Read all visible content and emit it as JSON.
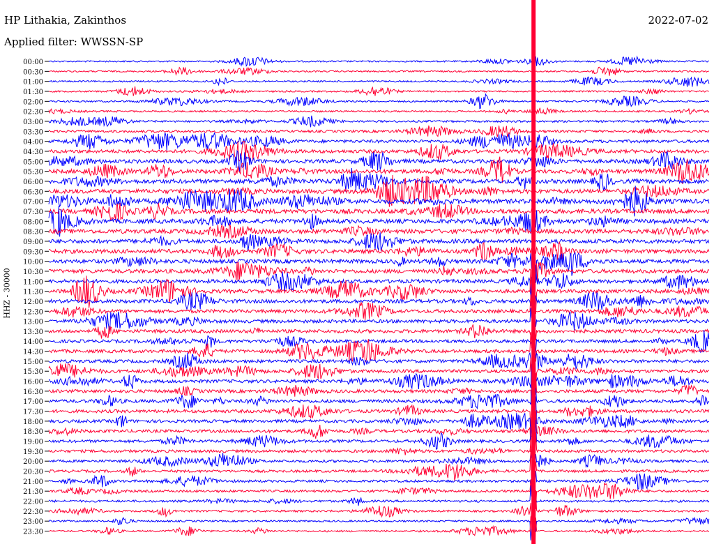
{
  "header": {
    "station": "HP Lithakia, Zakinthos",
    "filter": "Applied filter: WWSSN-SP",
    "date": "2022-07-02",
    "channel": "HHZ - 30000"
  },
  "chart_data": {
    "type": "line",
    "title": "HP Lithakia, Zakinthos",
    "subtitle": "Applied filter: WWSSN-SP",
    "ylabel": "HHZ - 30000",
    "date": "2022-07-02",
    "row_labels": [
      "00:00",
      "00:30",
      "01:00",
      "01:30",
      "02:00",
      "02:30",
      "03:00",
      "03:30",
      "04:00",
      "04:30",
      "05:00",
      "05:30",
      "06:00",
      "06:30",
      "07:00",
      "07:30",
      "08:00",
      "08:30",
      "09:00",
      "09:30",
      "10:00",
      "10:30",
      "11:00",
      "11:30",
      "12:00",
      "12:30",
      "13:00",
      "13:30",
      "14:00",
      "14:30",
      "15:00",
      "15:30",
      "16:00",
      "16:30",
      "17:00",
      "17:30",
      "18:00",
      "18:30",
      "19:00",
      "19:30",
      "20:00",
      "20:30",
      "21:00",
      "21:30",
      "22:00",
      "22:30",
      "23:00",
      "23:30"
    ],
    "row_colors": [
      "#0000ff",
      "#ff0033"
    ],
    "noise_level": [
      0.1,
      0.1,
      0.12,
      0.12,
      0.14,
      0.15,
      0.2,
      0.3,
      0.45,
      0.55,
      0.65,
      0.7,
      0.75,
      0.75,
      0.8,
      0.8,
      0.75,
      0.75,
      0.7,
      0.7,
      0.65,
      0.65,
      0.6,
      0.6,
      0.6,
      0.55,
      0.55,
      0.55,
      0.5,
      0.5,
      0.5,
      0.5,
      0.5,
      0.5,
      0.5,
      0.5,
      0.45,
      0.45,
      0.4,
      0.4,
      0.35,
      0.35,
      0.3,
      0.3,
      0.25,
      0.2,
      0.15,
      0.15
    ],
    "event_minute": 22.0,
    "event_row": 21
  }
}
